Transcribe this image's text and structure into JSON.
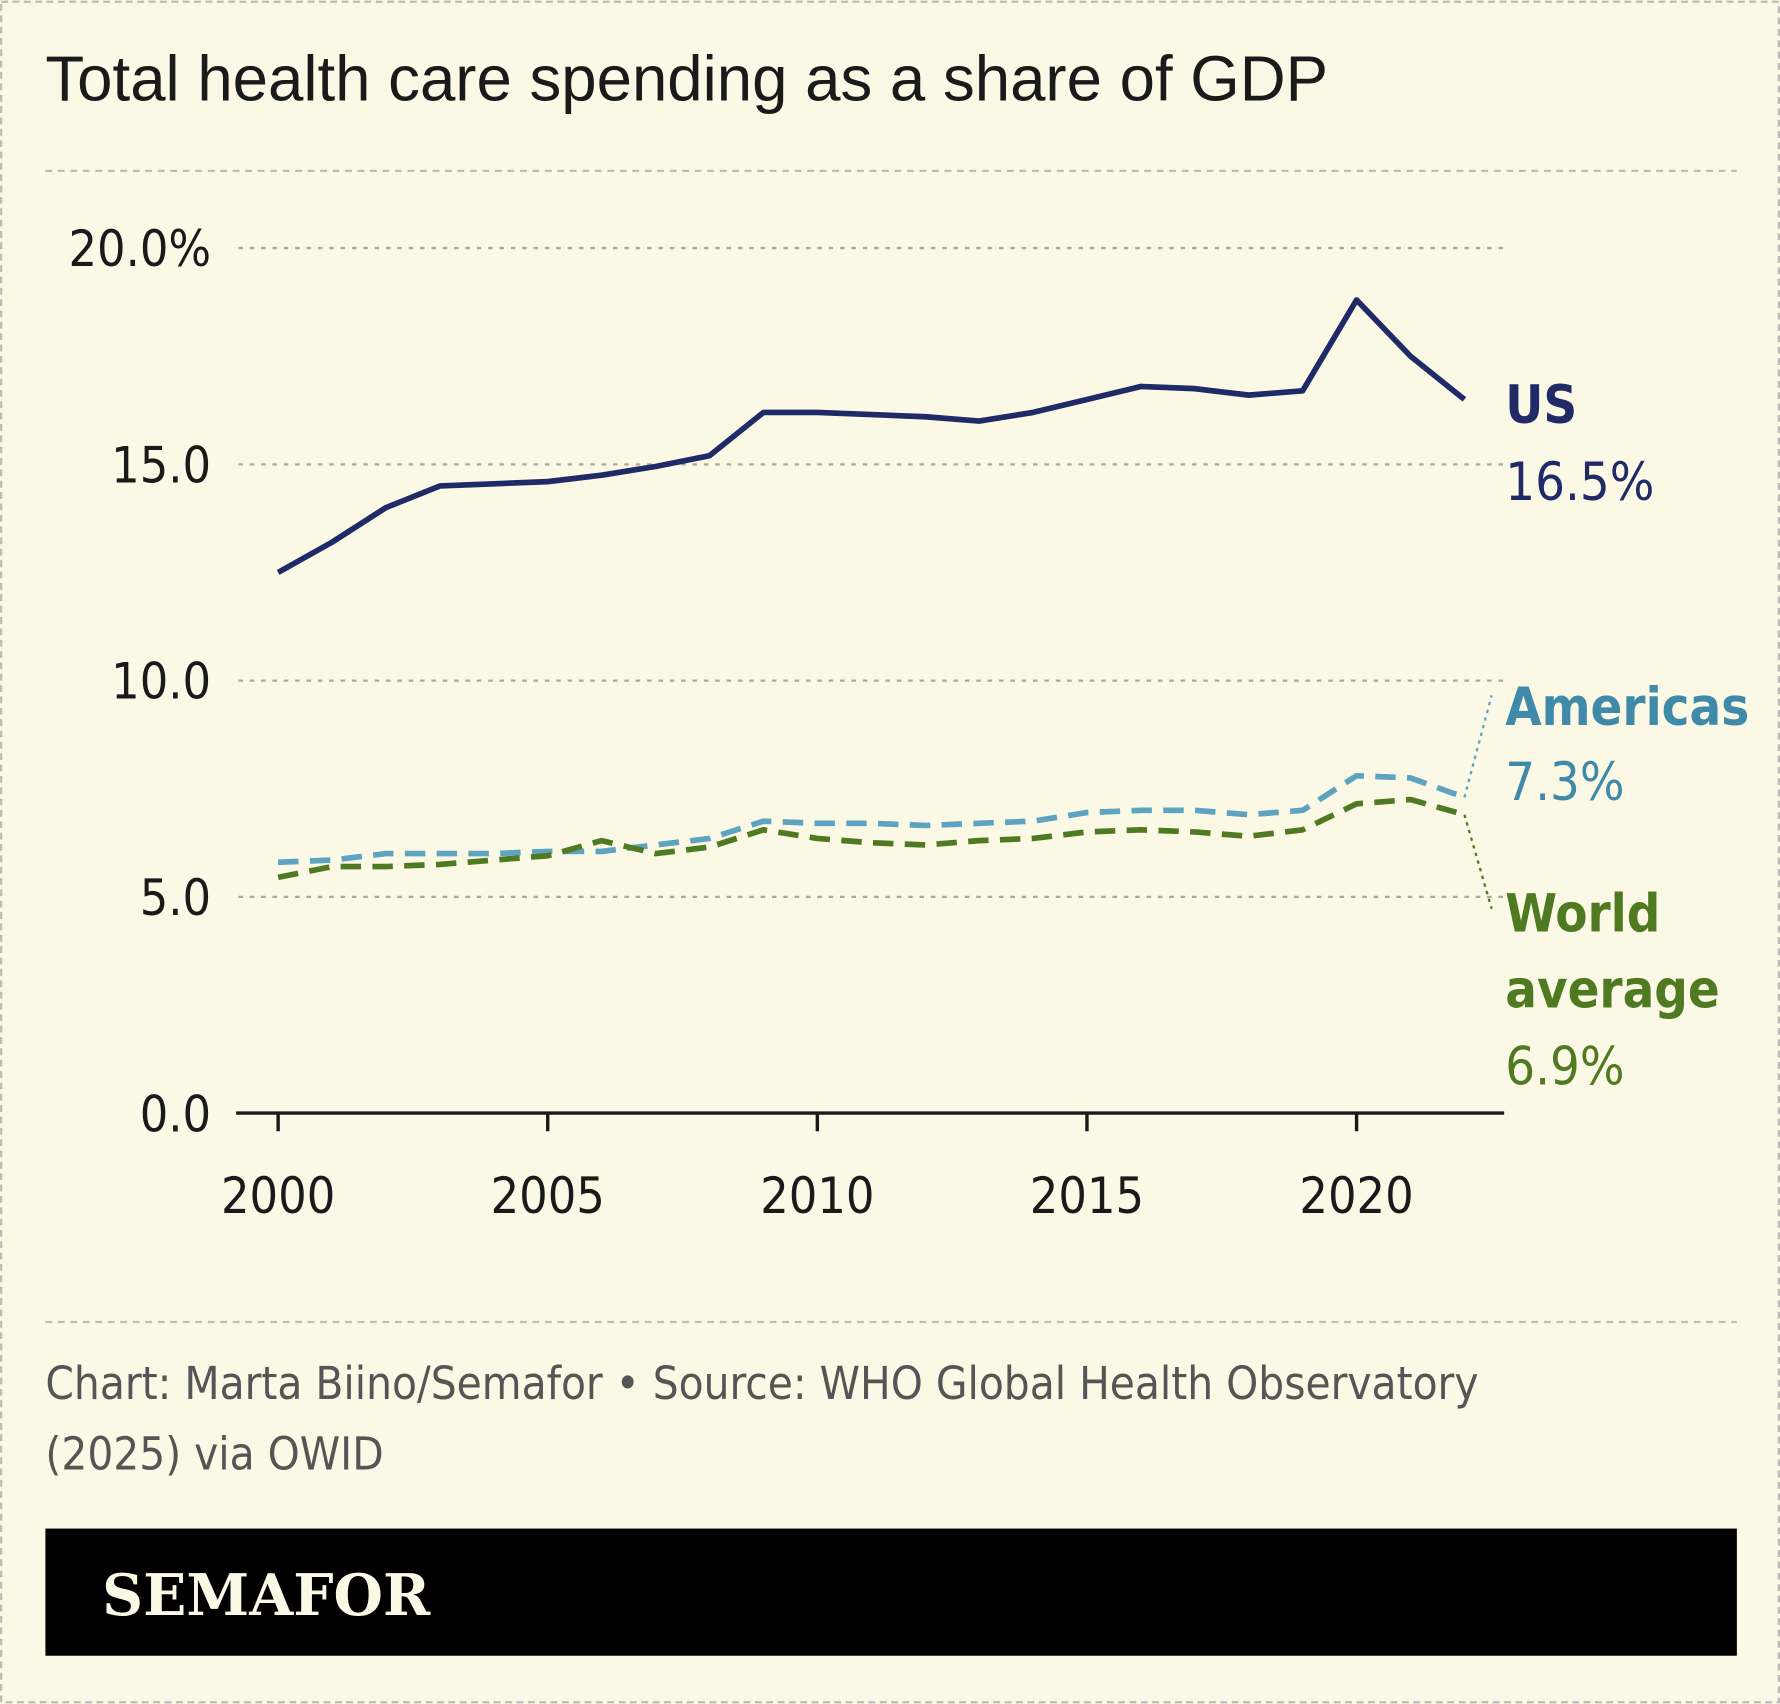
{
  "title": "Total health care spending as a share of GDP",
  "footer": {
    "credit_line1": "Chart: Marta Biino/Semafor • Source: WHO Global Health Observatory",
    "credit_line2": "(2025) via OWID",
    "brand": "SEMAFOR"
  },
  "colors": {
    "background": "#fbf9e6",
    "us": "#1f2a66",
    "americas": "#5ea3c0",
    "americas_label": "#3f8aa9",
    "world": "#4f7a22",
    "brand_bar": "#000000",
    "brand_text": "#fbf9e6"
  },
  "chart_data": {
    "type": "line",
    "title": "Total health care spending as a share of GDP",
    "xlabel": "",
    "ylabel": "",
    "xlim": [
      2000,
      2022
    ],
    "ylim": [
      0,
      20
    ],
    "grid": true,
    "x_ticks": [
      "2000",
      "2005",
      "2010",
      "2015",
      "2020"
    ],
    "y_ticks": [
      "0.0",
      "5.0",
      "10.0",
      "15.0",
      "20.0%"
    ],
    "x": [
      2000,
      2001,
      2002,
      2003,
      2004,
      2005,
      2006,
      2007,
      2008,
      2009,
      2010,
      2011,
      2012,
      2013,
      2014,
      2015,
      2016,
      2017,
      2018,
      2019,
      2020,
      2021,
      2022
    ],
    "series": [
      {
        "name": "US",
        "end_label": "16.5%",
        "style": "solid",
        "values": [
          12.5,
          13.2,
          14.0,
          14.5,
          14.55,
          14.6,
          14.75,
          14.95,
          15.2,
          16.2,
          16.2,
          16.15,
          16.1,
          16.0,
          16.2,
          16.5,
          16.8,
          16.75,
          16.6,
          16.7,
          18.8,
          17.5,
          16.5
        ]
      },
      {
        "name": "Americas",
        "end_label": "7.3%",
        "style": "dashed",
        "values": [
          5.8,
          5.85,
          6.0,
          6.0,
          6.0,
          6.05,
          6.05,
          6.2,
          6.35,
          6.75,
          6.7,
          6.7,
          6.65,
          6.7,
          6.75,
          6.95,
          7.0,
          7.0,
          6.9,
          7.0,
          7.8,
          7.75,
          7.3
        ]
      },
      {
        "name": "World average",
        "name_lines": [
          "World",
          "average"
        ],
        "end_label": "6.9%",
        "style": "dashed",
        "values": [
          5.45,
          5.7,
          5.7,
          5.75,
          5.85,
          5.95,
          6.3,
          6.0,
          6.15,
          6.55,
          6.35,
          6.25,
          6.2,
          6.3,
          6.35,
          6.5,
          6.55,
          6.5,
          6.4,
          6.55,
          7.15,
          7.25,
          6.9
        ]
      }
    ]
  }
}
